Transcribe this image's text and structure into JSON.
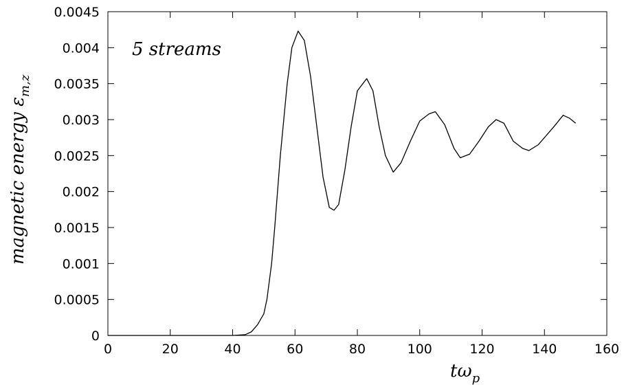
{
  "chart_data": {
    "type": "line",
    "annotation": "5 streams",
    "xlabel": "tω",
    "xlabel_subscript": "p",
    "ylabel": "magnetic energy ε",
    "ylabel_subscript": "m,z",
    "xlim": [
      0,
      160
    ],
    "xticks": [
      0,
      20,
      40,
      60,
      80,
      100,
      120,
      140,
      160
    ],
    "ylim": [
      0,
      0.0045
    ],
    "yticks": [
      0,
      0.0005,
      0.001,
      0.0015,
      0.002,
      0.0025,
      0.003,
      0.0035,
      0.004,
      0.0045
    ],
    "color": "#000000",
    "x": [
      0,
      40,
      44,
      46,
      48,
      50,
      51,
      52.5,
      53.5,
      54.4,
      55.3,
      56.4,
      57.5,
      59,
      61,
      63,
      65,
      67,
      69,
      71,
      72.5,
      74,
      76,
      78,
      80,
      83,
      85,
      87,
      89,
      91.5,
      94,
      97,
      100,
      103,
      105,
      108,
      111,
      113,
      116,
      119,
      122,
      124.5,
      127,
      130,
      133,
      135,
      138,
      141,
      143,
      146,
      148,
      150
    ],
    "values": [
      0,
      0,
      1e-05,
      5e-05,
      0.00015,
      0.0003,
      0.0005,
      0.001,
      0.0015,
      0.002,
      0.0025,
      0.003,
      0.0035,
      0.004,
      0.00423,
      0.0041,
      0.0036,
      0.0029,
      0.0022,
      0.00178,
      0.00174,
      0.00182,
      0.0023,
      0.0029,
      0.0034,
      0.00357,
      0.0034,
      0.0029,
      0.0025,
      0.00227,
      0.0024,
      0.0027,
      0.00298,
      0.00308,
      0.00311,
      0.00293,
      0.0026,
      0.00247,
      0.00252,
      0.0027,
      0.0029,
      0.003,
      0.00295,
      0.0027,
      0.0026,
      0.00257,
      0.00265,
      0.0028,
      0.0029,
      0.00306,
      0.00302,
      0.00295
    ]
  }
}
